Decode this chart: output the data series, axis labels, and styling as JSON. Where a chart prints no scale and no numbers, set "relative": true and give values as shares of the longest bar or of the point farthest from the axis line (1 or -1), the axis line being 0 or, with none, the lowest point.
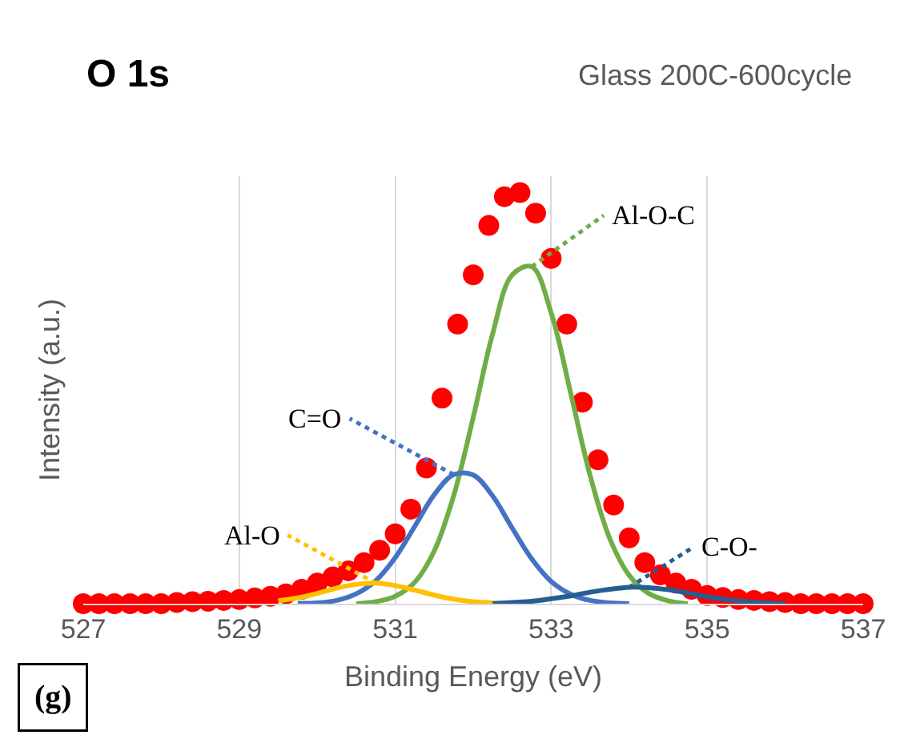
{
  "chart_data": {
    "type": "line",
    "title": "O 1s",
    "subtitle": "Glass 200C-600cycle",
    "xlabel": "Binding Energy (eV)",
    "ylabel": "Intensity (a.u.)",
    "annotations": [
      "(g)"
    ],
    "relative": true,
    "xlim": [
      527,
      537
    ],
    "xticks": [
      527,
      529,
      531,
      533,
      535,
      537
    ],
    "grid": "x",
    "legend": false,
    "series": [
      {
        "type": "scatter",
        "marker": "circle",
        "color": "#ff0000",
        "x": [
          527.0,
          527.2,
          527.4,
          527.6,
          527.8,
          528.0,
          528.2,
          528.4,
          528.6,
          528.8,
          529.0,
          529.2,
          529.4,
          529.6,
          529.8,
          530.0,
          530.2,
          530.4,
          530.6,
          530.8,
          531.0,
          531.2,
          531.4,
          531.6,
          531.8,
          532.0,
          532.2,
          532.4,
          532.6,
          532.8,
          533.0,
          533.2,
          533.4,
          533.6,
          533.8,
          534.0,
          534.2,
          534.4,
          534.6,
          534.8,
          535.0,
          535.2,
          535.4,
          535.6,
          535.8,
          536.0,
          536.2,
          536.4,
          536.6,
          536.8,
          537.0
        ],
        "values": [
          0,
          0,
          0,
          0,
          0,
          0,
          0.003,
          0.005,
          0.006,
          0.008,
          0.01,
          0.014,
          0.018,
          0.024,
          0.035,
          0.05,
          0.065,
          0.08,
          0.1,
          0.13,
          0.17,
          0.23,
          0.33,
          0.5,
          0.68,
          0.8,
          0.92,
          0.99,
          1.0,
          0.95,
          0.84,
          0.68,
          0.49,
          0.35,
          0.24,
          0.16,
          0.1,
          0.07,
          0.05,
          0.035,
          0.02,
          0.015,
          0.01,
          0.008,
          0.005,
          0.003,
          0,
          0,
          0,
          0,
          0
        ]
      },
      {
        "name": "Al-O-C",
        "color": "#70ad47",
        "x": [
          530.5,
          530.75,
          531,
          531.25,
          531.5,
          531.75,
          532,
          532.25,
          532.5,
          532.75,
          533,
          533.25,
          533.5,
          533.75,
          534,
          534.25,
          534.5,
          534.75
        ],
        "values": [
          0,
          0.005,
          0.018,
          0.052,
          0.128,
          0.263,
          0.453,
          0.657,
          0.8,
          0.82,
          0.707,
          0.512,
          0.311,
          0.159,
          0.069,
          0.025,
          0.007,
          0
        ]
      },
      {
        "name": "C=O",
        "color": "#4472c4",
        "x": [
          529.75,
          530,
          530.25,
          530.5,
          530.75,
          531,
          531.25,
          531.5,
          531.75,
          532,
          532.25,
          532.5,
          532.75,
          533,
          533.25,
          533.5,
          533.75,
          534
        ],
        "values": [
          0.001,
          0.002,
          0.008,
          0.024,
          0.056,
          0.112,
          0.188,
          0.265,
          0.314,
          0.313,
          0.262,
          0.184,
          0.109,
          0.054,
          0.023,
          0.008,
          0.002,
          0
        ]
      },
      {
        "name": "Al-O",
        "color": "#ffc000",
        "x": [
          529.5,
          529.75,
          530,
          530.25,
          530.5,
          530.75,
          531,
          531.25,
          531.5,
          531.75,
          532,
          532.25,
          532.5
        ],
        "values": [
          0.007,
          0.014,
          0.025,
          0.038,
          0.047,
          0.05,
          0.044,
          0.033,
          0.021,
          0.011,
          0.005,
          0.002,
          0
        ]
      },
      {
        "name": "C-O-",
        "color": "#255e91",
        "x": [
          532.25,
          532.5,
          532.75,
          533,
          533.25,
          533.5,
          533.75,
          534,
          534.25,
          534.5,
          534.75,
          535,
          535.25,
          535.5,
          535.75,
          536
        ],
        "values": [
          0,
          0.003,
          0.006,
          0.012,
          0.019,
          0.028,
          0.035,
          0.04,
          0.039,
          0.034,
          0.026,
          0.017,
          0.01,
          0.005,
          0.002,
          0
        ]
      }
    ]
  }
}
